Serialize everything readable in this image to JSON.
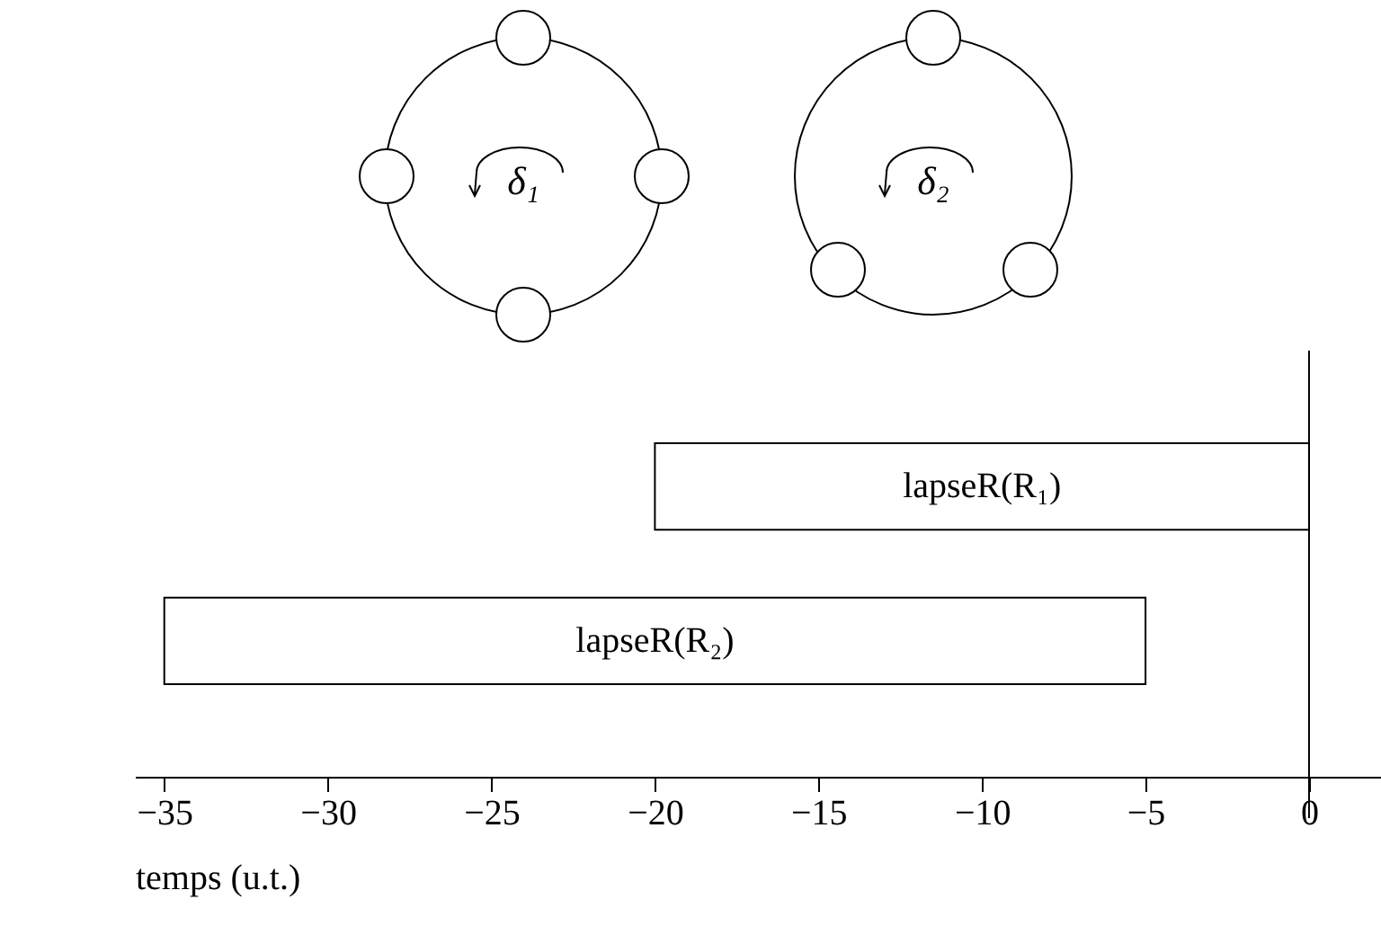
{
  "chart_data": {
    "type": "bar",
    "orientation": "horizontal",
    "xlabel": "temps (u.t.)",
    "categories": [
      "lapseR(R₁)",
      "lapseR(R₂)"
    ],
    "base": [
      -20,
      -35
    ],
    "values": [
      20,
      30
    ],
    "color": "#ffffff",
    "xlim": [
      -35.9,
      2.2
    ],
    "xticks": [
      -35,
      -30,
      -25,
      -20,
      -15,
      -10,
      -5,
      0
    ],
    "grid": false,
    "ref_lines": [
      {
        "axis": "x",
        "value": 0,
        "color": "#000000"
      }
    ],
    "annotations": [
      "δ₁",
      "δ₂"
    ]
  }
}
